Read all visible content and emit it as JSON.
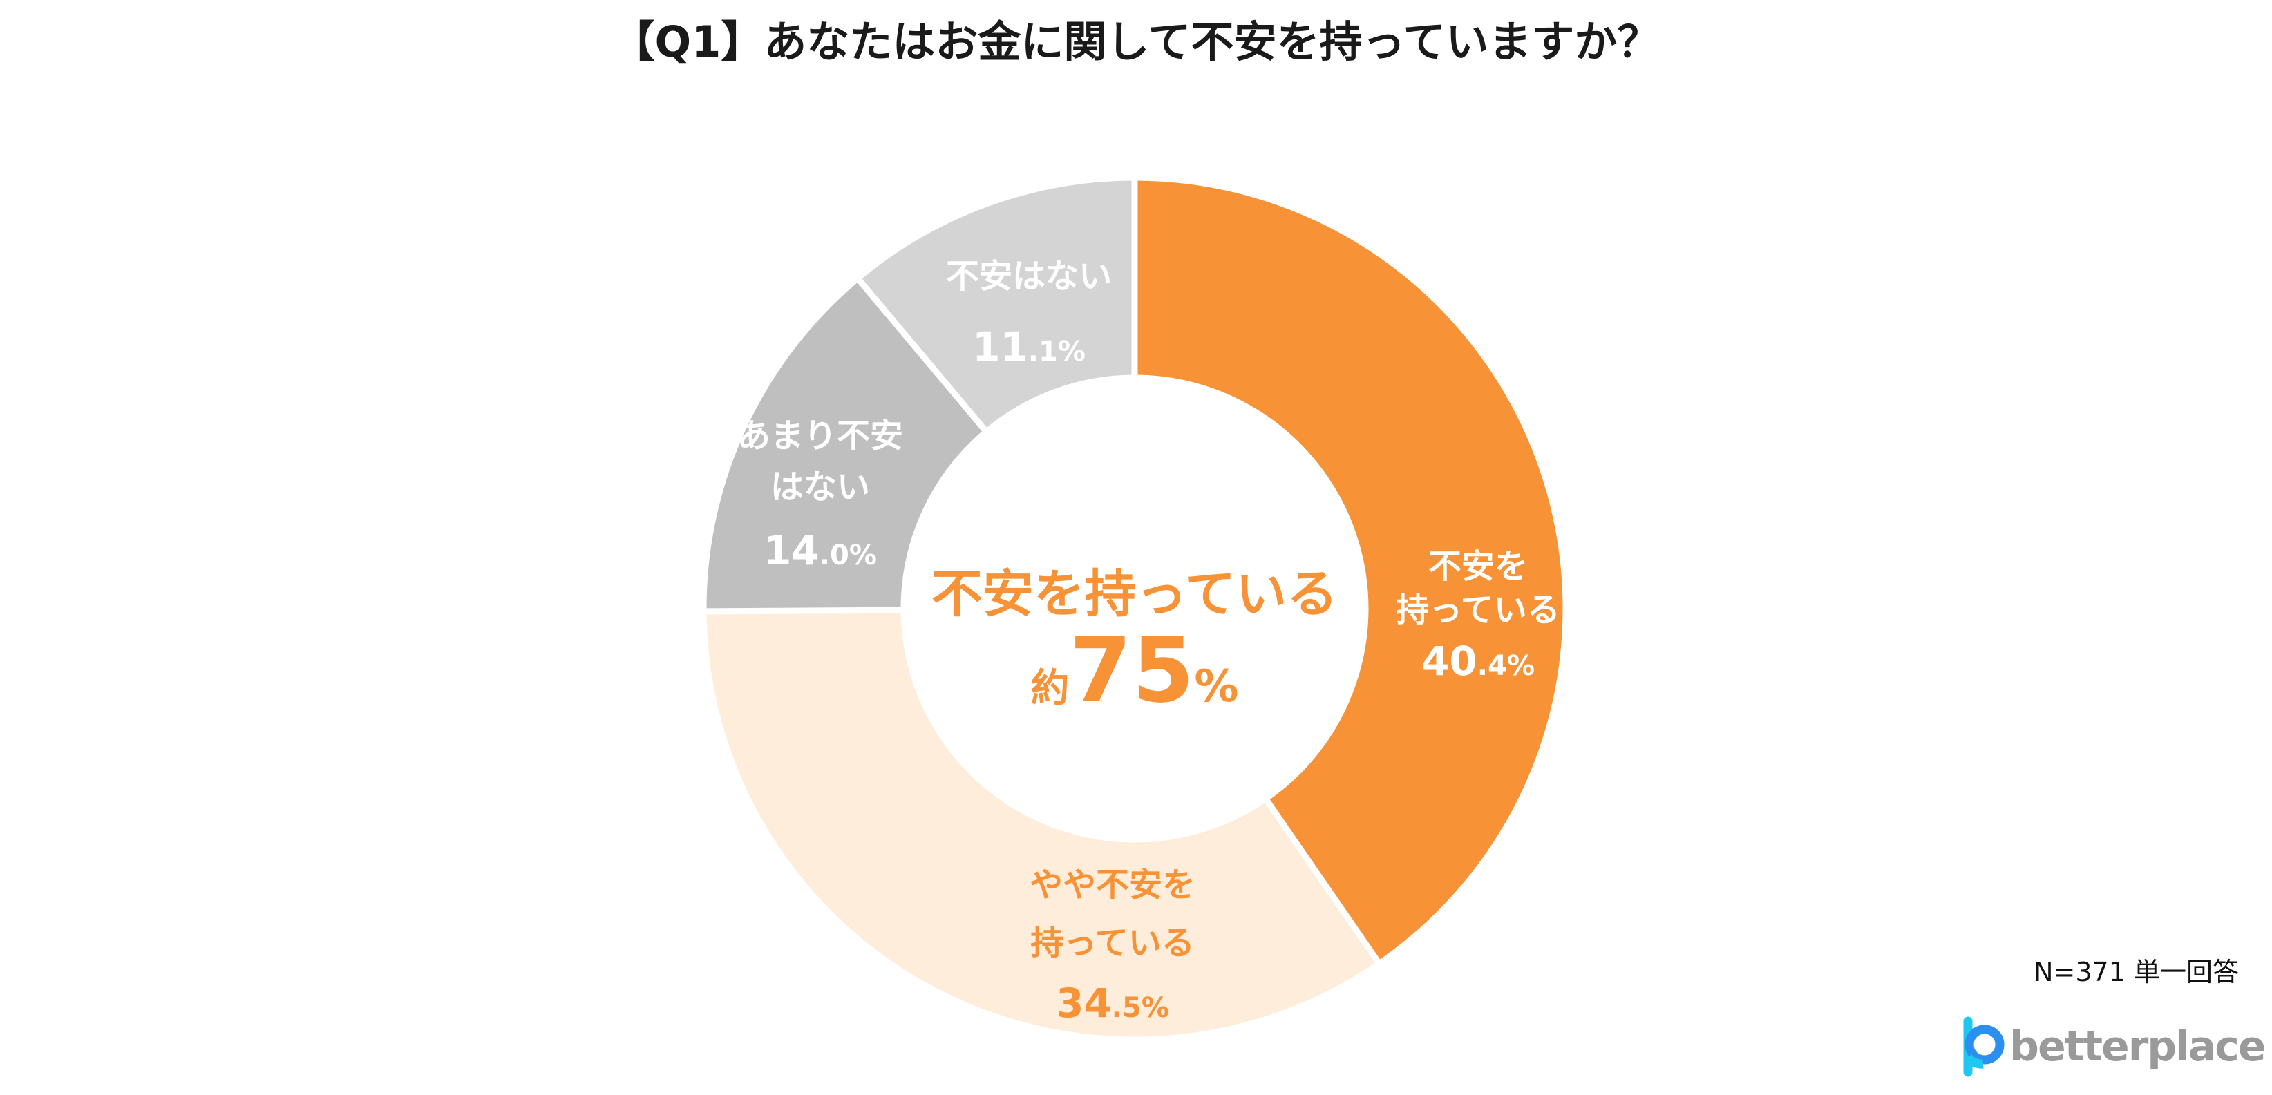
{
  "chart_data": {
    "type": "pie",
    "donut": true,
    "title": "【Q1】あなたはお金に関して不安を持っていますか？",
    "categories": [
      "不安を持っている",
      "やや不安を持っている",
      "あまり不安はない",
      "不安はない"
    ],
    "label_lines": [
      [
        "不安を",
        "持っている"
      ],
      [
        "やや不安を",
        "持っている"
      ],
      [
        "あまり不安",
        "はない"
      ],
      [
        "不安はない"
      ]
    ],
    "values": [
      40.4,
      34.5,
      14.0,
      11.1
    ],
    "unit": "%",
    "colors": [
      "#F79236",
      "#FDEDDA",
      "#BFBFBF",
      "#D4D4D4"
    ],
    "label_colors": [
      "#FFFFFF",
      "#F79236",
      "#FFFFFF",
      "#FFFFFF"
    ],
    "center_label": {
      "line1": "不安を持っている",
      "prefix": "約",
      "value": "75",
      "suffix": "%"
    },
    "center_color": "#F79236"
  },
  "footer": {
    "sample_note": "N=371 単一回答",
    "logo_text": "betterplace"
  }
}
